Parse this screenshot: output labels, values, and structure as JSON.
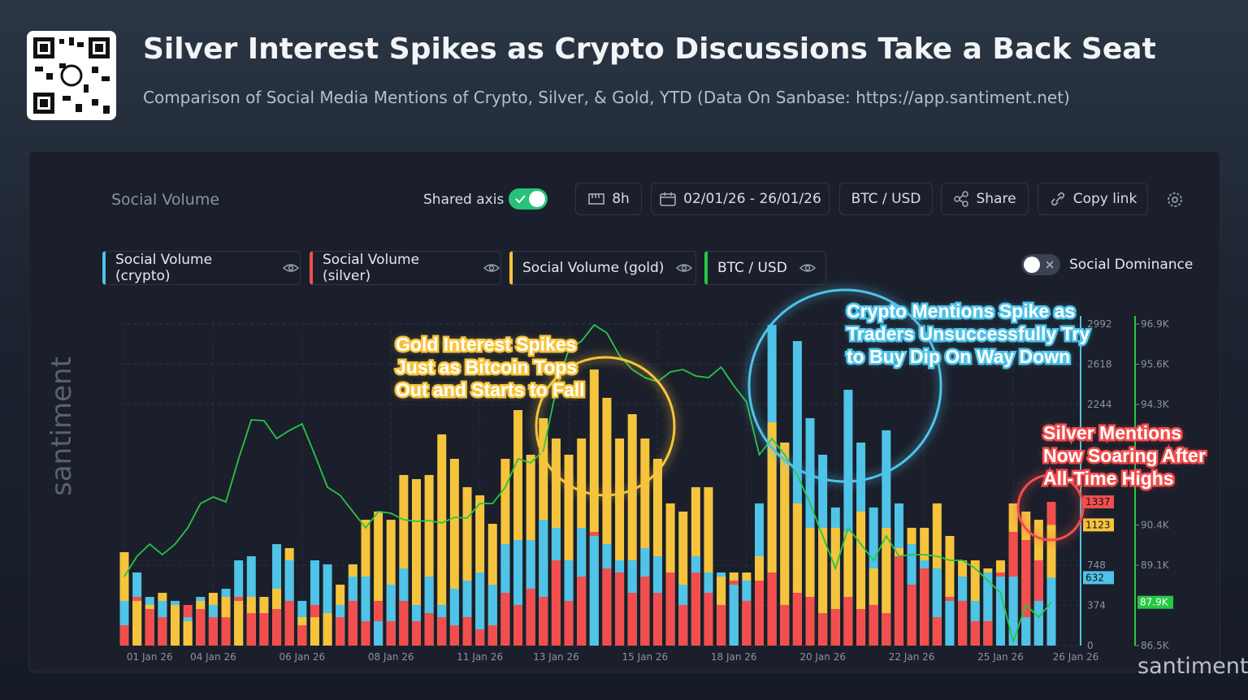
{
  "header": {
    "title": "Silver Interest Spikes as Crypto Discussions Take a Back Seat",
    "subtitle": "Comparison of Social Media Mentions of Crypto, Silver, & Gold, YTD (Data On Sanbase: https://app.santiment.net)"
  },
  "toolbar": {
    "metric": "Social Volume",
    "shared_axis": "Shared axis",
    "interval": "8h",
    "date_range": "02/01/26 - 26/01/26",
    "pair": "BTC / USD",
    "share": "Share",
    "copy_link": "Copy link",
    "social_dominance": "Social Dominance"
  },
  "watermark": "santiment",
  "chart_data": {
    "type": "bar",
    "grid": true,
    "categories": [
      null,
      null,
      "01 Jan 26",
      null,
      null,
      null,
      null,
      "04 Jan 26",
      null,
      null,
      null,
      null,
      null,
      null,
      "06 Jan 26",
      null,
      null,
      null,
      null,
      null,
      null,
      "08 Jan 26",
      null,
      null,
      null,
      null,
      null,
      null,
      "11 Jan 26",
      null,
      null,
      null,
      null,
      null,
      "13 Jan 26",
      null,
      null,
      null,
      null,
      null,
      null,
      "15 Jan 26",
      null,
      null,
      null,
      null,
      null,
      null,
      "18 Jan 26",
      null,
      null,
      null,
      null,
      null,
      null,
      "20 Jan 26",
      null,
      null,
      null,
      null,
      null,
      null,
      "22 Jan 26",
      null,
      null,
      null,
      null,
      null,
      null,
      "25 Jan 26",
      null,
      null,
      null,
      "26 Jan 26"
    ],
    "ylim": [
      0,
      2992
    ],
    "yticks": [
      0,
      374,
      748,
      2244,
      2618,
      2992
    ],
    "y2lim": [
      86500,
      96900
    ],
    "y2ticks": [
      {
        "value": 86500,
        "label": "86.5K"
      },
      {
        "value": 89100,
        "label": "89.1K"
      },
      {
        "value": 90400,
        "label": "90.4K"
      },
      {
        "value": 94300,
        "label": "94.3K"
      },
      {
        "value": 95600,
        "label": "95.6K"
      },
      {
        "value": 96900,
        "label": "96.9K"
      }
    ],
    "series": [
      {
        "name": "Social Volume (crypto)",
        "color": "#4fc3e8",
        "values": [
          416,
          680,
          453,
          416,
          416,
          264,
          453,
          378,
          529,
          793,
          831,
          453,
          944,
          793,
          416,
          793,
          756,
          378,
          642,
          642,
          227,
          567,
          718,
          378,
          642,
          378,
          529,
          605,
          680,
          567,
          944,
          982,
          982,
          1171,
          1096,
          793,
          1096,
          1020,
          944,
          793,
          793,
          907,
          831,
          680,
          567,
          831,
          680,
          680,
          567,
          605,
          1323,
          2984,
          1889,
          2833,
          2116,
          1776,
          1285,
          2380,
          1889,
          1285,
          2003,
          1323,
          944,
          793,
          718,
          416,
          642,
          416,
          680,
          642,
          642,
          264,
          416,
          632
        ]
      },
      {
        "name": "Social Volume (silver)",
        "color": "#f24e4e",
        "values": [
          189,
          453,
          340,
          264,
          378,
          378,
          340,
          264,
          264,
          453,
          302,
          302,
          340,
          416,
          189,
          378,
          302,
          264,
          416,
          227,
          416,
          227,
          416,
          227,
          302,
          264,
          189,
          264,
          151,
          189,
          491,
          378,
          529,
          453,
          793,
          416,
          642,
          1058,
          718,
          680,
          491,
          642,
          491,
          680,
          378,
          680,
          491,
          378,
          605,
          416,
          605,
          680,
          378,
          491,
          453,
          302,
          340,
          453,
          340,
          378,
          302,
          831,
          567,
          718,
          264,
          453,
          416,
          227,
          227,
          680,
          1058,
          982,
          793,
          1337
        ]
      },
      {
        "name": "Social Volume (gold)",
        "color": "#f6c43c",
        "values": [
          869,
          416,
          378,
          491,
          378,
          227,
          416,
          491,
          453,
          416,
          453,
          453,
          529,
          907,
          264,
          264,
          302,
          567,
          756,
          1171,
          1247,
          1171,
          1587,
          1549,
          1587,
          1965,
          1738,
          1474,
          1398,
          1133,
          1738,
          2191,
          1776,
          2116,
          1927,
          1776,
          1927,
          2569,
          2305,
          1927,
          2153,
          1927,
          1738,
          1323,
          1247,
          1474,
          1474,
          642,
          680,
          680,
          831,
          2078,
          1889,
          1323,
          1096,
          1096,
          1096,
          1058,
          1247,
          718,
          1096,
          907,
          1096,
          1096,
          1323,
          1020,
          793,
          793,
          718,
          793,
          1323,
          1247,
          1171,
          1123
        ]
      },
      {
        "name": "BTC / USD",
        "color": "#26c645",
        "type": "line",
        "axis": "y2",
        "values": [
          88732,
          89389,
          89782,
          89441,
          89782,
          90308,
          91095,
          91306,
          91148,
          92540,
          93800,
          93774,
          93196,
          93459,
          93669,
          92671,
          91621,
          91358,
          90833,
          90308,
          90833,
          90780,
          90570,
          90518,
          90544,
          90465,
          90649,
          90623,
          91095,
          91095,
          91621,
          92540,
          92409,
          92803,
          94772,
          96085,
          96347,
          96872,
          96610,
          95875,
          95428,
          95166,
          95035,
          95350,
          95428,
          95219,
          95166,
          95507,
          94903,
          94378,
          92671,
          93196,
          92671,
          92015,
          91095,
          90045,
          88995,
          90308,
          89782,
          89257,
          90045,
          89389,
          89441,
          89441,
          89389,
          89257,
          89257,
          88995,
          88601,
          88207,
          86631,
          87813,
          87419,
          87900
        ],
        "value_labels": [
          null,
          null,
          null,
          null,
          null,
          null,
          null,
          null,
          null,
          null,
          null,
          null,
          null,
          null,
          null,
          null,
          null,
          null,
          null,
          null,
          null,
          null,
          null,
          null,
          null,
          null,
          null,
          null,
          null,
          null,
          null,
          null,
          null,
          null,
          null,
          null,
          null,
          null,
          null,
          null,
          null,
          null,
          null,
          null,
          null,
          null,
          null,
          null,
          null,
          null,
          null,
          null,
          null,
          null,
          null,
          null,
          null,
          null,
          null,
          null,
          null,
          null,
          null,
          null,
          null,
          null,
          null,
          null,
          null,
          null,
          null,
          null,
          null,
          "87.9K"
        ]
      }
    ],
    "annotations": [
      {
        "lines": [
          "Gold Interest Spikes",
          "Just as Bitcoin Tops",
          "Out and Starts to Fall"
        ],
        "color": "#f6c43c"
      },
      {
        "lines": [
          "Crypto Mentions Spike as",
          "Traders Unsuccessfully Try",
          "to Buy Dip On Way Down"
        ],
        "color": "#4fc3e8"
      },
      {
        "lines": [
          "Silver Mentions",
          "Now Soaring After",
          "All-Time Highs"
        ],
        "color": "#f24e4e"
      }
    ]
  }
}
